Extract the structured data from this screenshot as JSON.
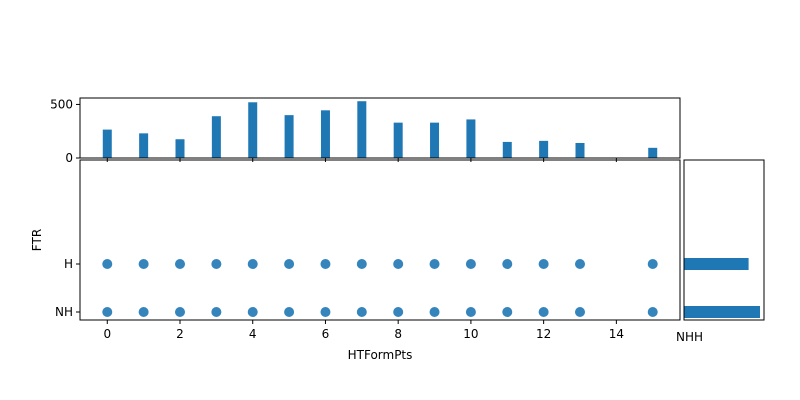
{
  "chart_data": [
    {
      "panel": "top-marginal-histogram",
      "type": "bar",
      "x": [
        0,
        1,
        2,
        3,
        4,
        5,
        6,
        7,
        8,
        9,
        10,
        11,
        12,
        13,
        15
      ],
      "values": [
        265,
        230,
        175,
        390,
        520,
        400,
        445,
        530,
        330,
        330,
        360,
        150,
        160,
        140,
        95
      ],
      "ylim": [
        0,
        560
      ],
      "yticks": [
        "0",
        "500"
      ],
      "color": "#1f77b4"
    },
    {
      "panel": "joint-scatter",
      "type": "scatter",
      "xlabel": "HTFormPts",
      "ylabel": "FTR",
      "xticks": [
        "0",
        "2",
        "4",
        "6",
        "8",
        "10",
        "12",
        "14"
      ],
      "yticks": [
        "NH",
        "H"
      ],
      "xlim": [
        -0.75,
        15.75
      ],
      "categories_y": [
        "NH",
        "H"
      ],
      "series": [
        {
          "y": "H",
          "x": [
            0,
            1,
            2,
            3,
            4,
            5,
            6,
            7,
            8,
            9,
            10,
            11,
            12,
            13,
            15
          ]
        },
        {
          "y": "NH",
          "x": [
            0,
            1,
            2,
            3,
            4,
            5,
            6,
            7,
            8,
            9,
            10,
            11,
            12,
            13,
            15
          ]
        }
      ],
      "color": "#1f77b4"
    },
    {
      "panel": "right-marginal-histogram",
      "type": "bar",
      "orientation": "horizontal",
      "categories": [
        "H",
        "NH"
      ],
      "values": [
        0.85,
        1.0
      ],
      "tick_labels_bottom": "NHH",
      "color": "#1f77b4"
    }
  ]
}
